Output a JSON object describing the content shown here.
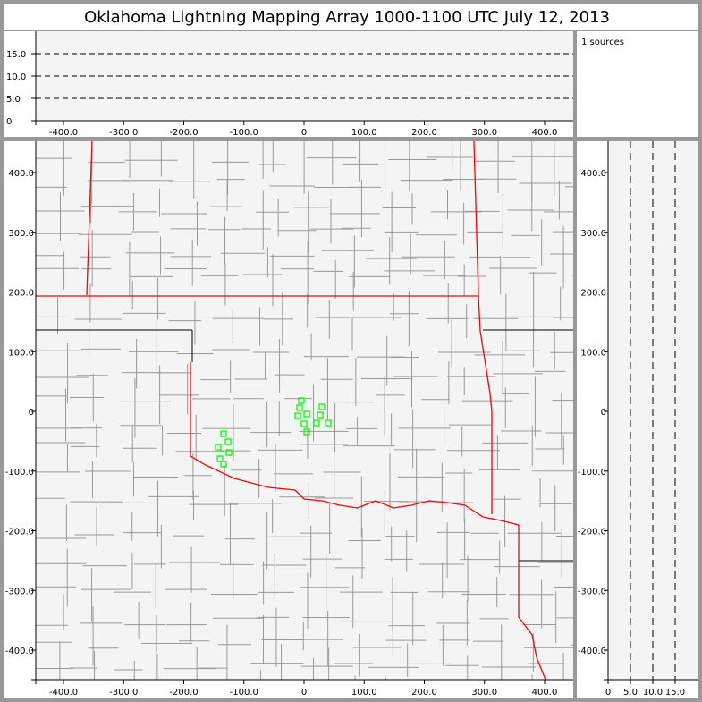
{
  "title": "Oklahoma Lightning Mapping Array   1000-1100 UTC  July 12, 2013",
  "source_count_label": "1 sources",
  "colors": {
    "frame": "#999999",
    "plot_bg": "#f4f4f4",
    "state_border": "#ff0000",
    "county": "#999999",
    "source": "#00ff00"
  },
  "chart_data": [
    {
      "type": "scatter",
      "name_panel": "altitude-vs-east-west",
      "xlim": [
        -460,
        445
      ],
      "ylim": [
        0,
        20
      ],
      "xticks": [
        "-400.0",
        "-300.0",
        "-200.0",
        "-100.0",
        "0",
        "100.0",
        "200.0",
        "300.0",
        "400.0"
      ],
      "xtick_values": [
        -400,
        -300,
        -200,
        -100,
        0,
        100,
        200,
        300,
        400
      ],
      "yticks": [
        "0",
        "5.0",
        "10.0",
        "15.0"
      ],
      "ytick_values": [
        0,
        5,
        10,
        15
      ],
      "grid": "dashed horizontal at 5, 10, 15"
    },
    {
      "type": "scatter",
      "name_panel": "plan-view-map",
      "xlim": [
        -460,
        445
      ],
      "ylim": [
        -450,
        450
      ],
      "xticks": [
        "-400.0",
        "-300.0",
        "-200.0",
        "-100.0",
        "0",
        "100.0",
        "200.0",
        "300.0",
        "400.0"
      ],
      "xtick_values": [
        -400,
        -300,
        -200,
        -100,
        0,
        100,
        200,
        300,
        400
      ],
      "yticks": [
        "400.0",
        "300.0",
        "200.0",
        "100.0",
        "0",
        "-100.0",
        "-200.0",
        "-300.0",
        "-400.0"
      ],
      "ytick_values": [
        400,
        300,
        200,
        100,
        0,
        -100,
        -200,
        -300,
        -400
      ],
      "points": [
        [
          -4.5,
          18
        ],
        [
          -7.4,
          6
        ],
        [
          29.7,
          7.5
        ],
        [
          -10.4,
          -7.5
        ],
        [
          4.5,
          -4.5
        ],
        [
          26.8,
          -6
        ],
        [
          0,
          -21
        ],
        [
          20.8,
          -19.5
        ],
        [
          40.1,
          -19.5
        ],
        [
          4.5,
          -34.5
        ],
        [
          -133.8,
          -37.5
        ],
        [
          -126.4,
          -51
        ],
        [
          -142.8,
          -60
        ],
        [
          -124.9,
          -69
        ],
        [
          -139.8,
          -79.4
        ],
        [
          -133.8,
          -88.4
        ]
      ]
    },
    {
      "type": "scatter",
      "name_panel": "north-south-vs-altitude",
      "xlim": [
        0,
        20
      ],
      "ylim": [
        -450,
        450
      ],
      "xticks": [
        "0",
        "5.0",
        "10.0",
        "15.0"
      ],
      "xtick_values": [
        0,
        5,
        10,
        15
      ],
      "yticks": [
        "400.0",
        "300.0",
        "200.0",
        "100.0",
        "0",
        "-100.0",
        "-200.0",
        "-300.0",
        "-400.0"
      ],
      "ytick_values": [
        400,
        300,
        200,
        100,
        0,
        -100,
        -200,
        -300,
        -400
      ],
      "grid": "dashed vertical at 5, 10, 15"
    }
  ]
}
